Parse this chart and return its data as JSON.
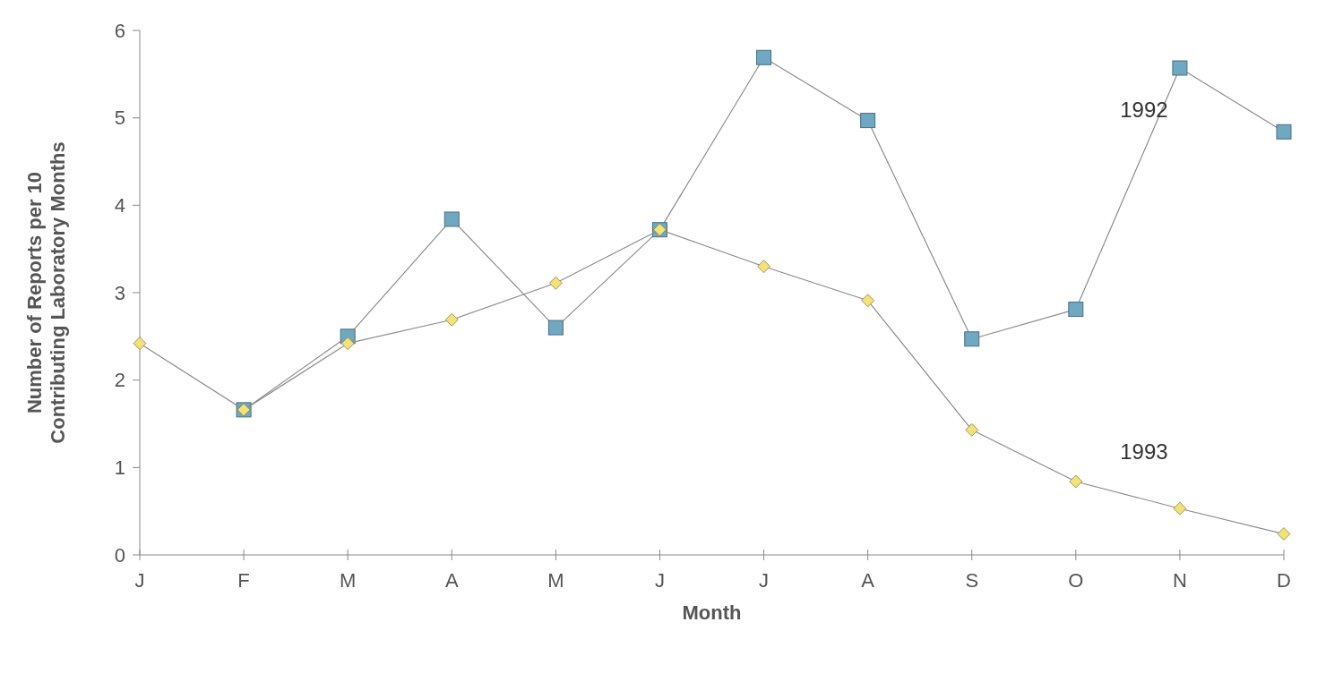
{
  "chart_data": {
    "type": "line",
    "xlabel": "Month",
    "ylabel": "Number of Reports per 10\nContributing Laboratory Months",
    "categories": [
      "J",
      "F",
      "M",
      "A",
      "M",
      "J",
      "J",
      "A",
      "S",
      "O",
      "N",
      "D"
    ],
    "ylim": [
      0,
      6
    ],
    "yticks": [
      0,
      1,
      2,
      3,
      4,
      5,
      6
    ],
    "grid": false,
    "line_style": "solid",
    "series": [
      {
        "name": "1992",
        "color": "#6fa8c0",
        "marker": "square",
        "values": [
          null,
          1.66,
          2.5,
          3.84,
          2.6,
          3.72,
          5.69,
          4.97,
          2.47,
          2.81,
          5.57,
          4.84
        ]
      },
      {
        "name": "1993",
        "color": "#f2e27a",
        "marker": "diamond",
        "values": [
          2.42,
          1.66,
          2.42,
          2.69,
          3.11,
          3.72,
          3.3,
          2.91,
          1.43,
          0.84,
          0.53,
          0.24
        ]
      }
    ]
  }
}
